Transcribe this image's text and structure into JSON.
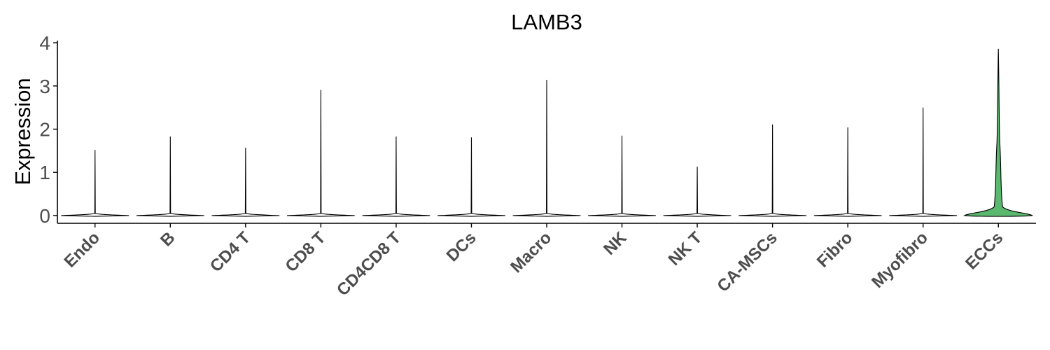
{
  "chart_data": {
    "type": "violin",
    "title": "LAMB3",
    "xlabel": "",
    "ylabel": "Expression",
    "ylim": [
      -0.18,
      4.05
    ],
    "yticks": [
      0,
      1,
      2,
      3,
      4
    ],
    "grid": false,
    "legend": "none",
    "categories": [
      "Endo",
      "B",
      "CD4 T",
      "CD8 T",
      "CD4CD8 T",
      "DCs",
      "Macro",
      "NK",
      "NK T",
      "CA-MSCs",
      "Fibro",
      "Myofibro",
      "ECCs"
    ],
    "max_values": [
      1.52,
      1.83,
      1.57,
      2.91,
      1.83,
      1.81,
      3.14,
      1.85,
      1.13,
      2.11,
      2.04,
      2.5,
      3.86
    ],
    "colors": {
      "ECCs": "#5bb86f",
      "default": "#ffffff"
    }
  }
}
